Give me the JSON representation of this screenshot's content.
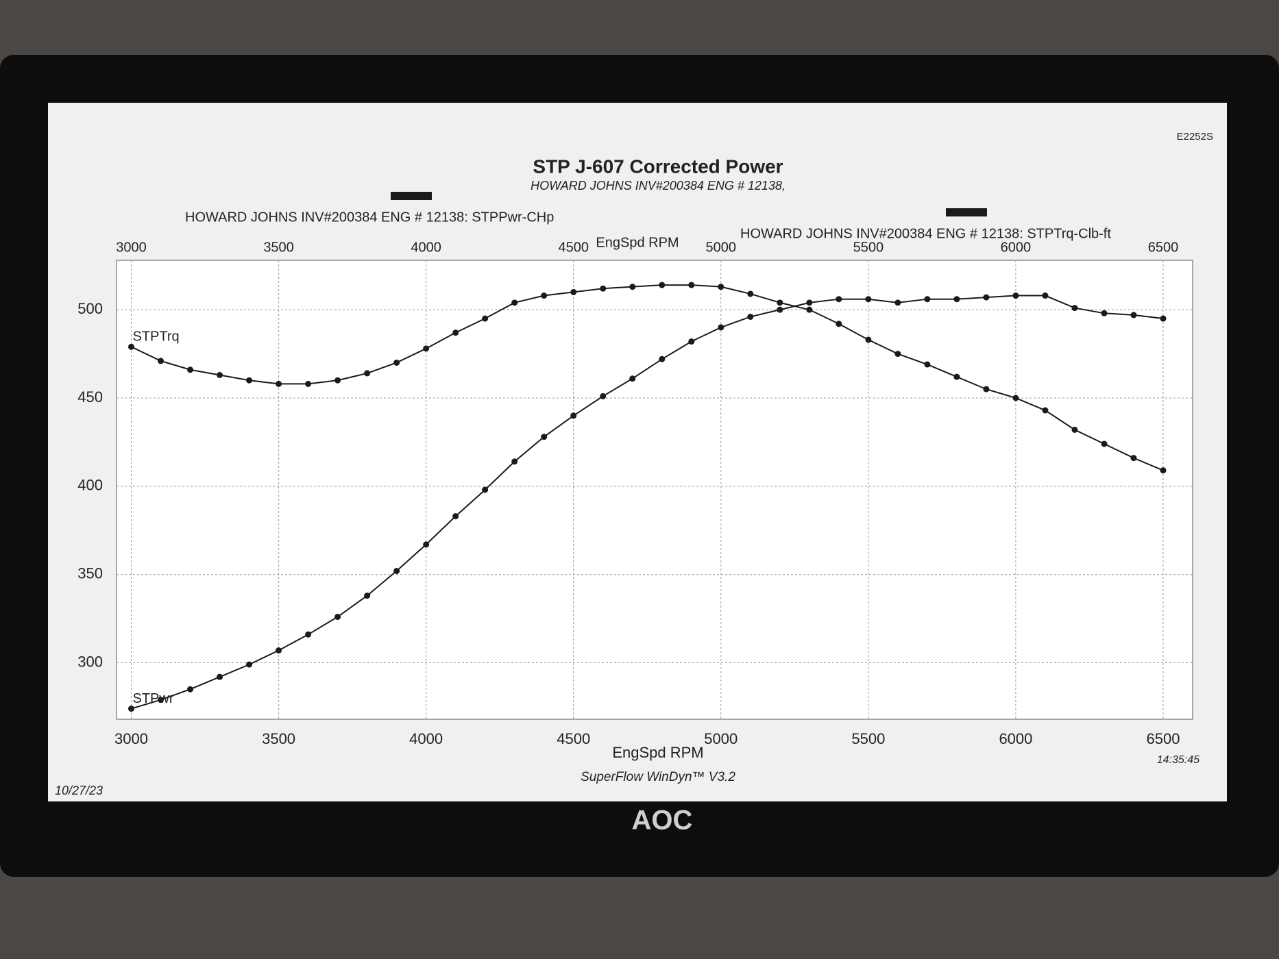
{
  "chart_data": {
    "type": "line",
    "title": "STP J-607 Corrected Power",
    "subtitle": "HOWARD JOHNS INV#200384 ENG # 12138,",
    "x_label": "EngSpd RPM",
    "x": [
      3000,
      3100,
      3200,
      3300,
      3400,
      3500,
      3600,
      3700,
      3800,
      3900,
      4000,
      4100,
      4200,
      4300,
      4400,
      4500,
      4600,
      4700,
      4800,
      4900,
      5000,
      5100,
      5200,
      5300,
      5400,
      5500,
      5600,
      5700,
      5800,
      5900,
      6000,
      6100,
      6200,
      6300,
      6400,
      6500
    ],
    "series": [
      {
        "name": "HOWARD JOHNS INV#200384 ENG # 12138: STPPwr-CHp",
        "label": "STPwr",
        "color": "#1a1a1a",
        "values": [
          274,
          279,
          285,
          292,
          299,
          307,
          316,
          326,
          338,
          352,
          367,
          383,
          398,
          414,
          428,
          440,
          451,
          461,
          472,
          482,
          490,
          496,
          500,
          504,
          506,
          506,
          504,
          506,
          506,
          507,
          508,
          508,
          501,
          498,
          497,
          495
        ]
      },
      {
        "name": "HOWARD JOHNS INV#200384 ENG # 12138: STPTrq-Clb-ft",
        "label": "STPTrq",
        "color": "#1a1a1a",
        "values": [
          479,
          471,
          466,
          463,
          460,
          458,
          458,
          460,
          464,
          470,
          478,
          487,
          495,
          504,
          508,
          510,
          512,
          513,
          514,
          514,
          513,
          509,
          504,
          500,
          492,
          483,
          475,
          469,
          462,
          455,
          450,
          443,
          432,
          424,
          416,
          409
        ]
      }
    ],
    "xlim": [
      2950,
      6600
    ],
    "xticks": [
      3000,
      3500,
      4000,
      4500,
      5000,
      5500,
      6000,
      6500
    ],
    "ylim": [
      268,
      528
    ],
    "yticks": [
      300,
      350,
      400,
      450,
      500
    ],
    "grid": true,
    "footer": "SuperFlow WinDyn™ V3.2",
    "date": "10/27/23",
    "time": "14:35:45",
    "brand": "AOC",
    "model": "E2252S"
  }
}
